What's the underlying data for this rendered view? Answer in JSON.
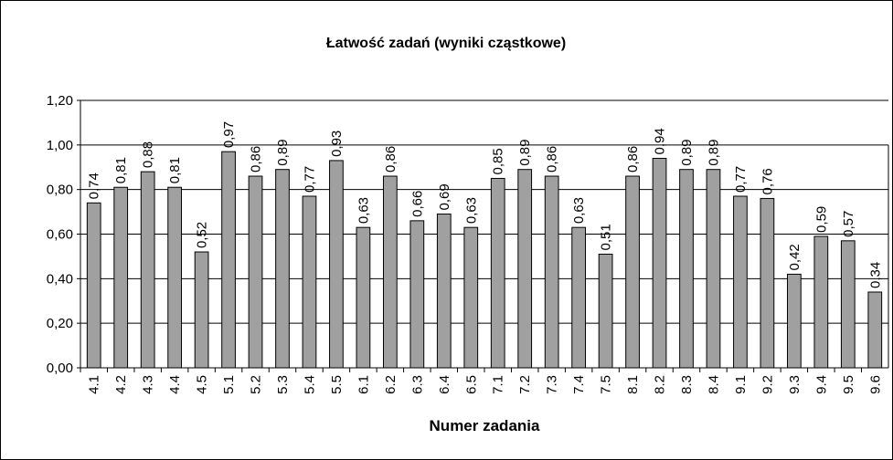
{
  "chart_data": {
    "type": "bar",
    "title": "Łatwość zadań (wyniki cząstkowe)",
    "x_label": "Numer zadania",
    "categories": [
      "4.1",
      "4.2",
      "4.3",
      "4.4",
      "4.5",
      "5.1",
      "5.2",
      "5.3",
      "5.4",
      "5.5",
      "6.1",
      "6.2",
      "6.3",
      "6.4",
      "6.5",
      "7.1",
      "7.2",
      "7.3",
      "7.4",
      "7.5",
      "8.1",
      "8.2",
      "8.3",
      "8.4",
      "9.1",
      "9.2",
      "9.3",
      "9.4",
      "9.5",
      "9.6"
    ],
    "values": [
      0.74,
      0.81,
      0.88,
      0.81,
      0.52,
      0.97,
      0.86,
      0.89,
      0.77,
      0.93,
      0.63,
      0.86,
      0.66,
      0.69,
      0.63,
      0.85,
      0.89,
      0.86,
      0.63,
      0.51,
      0.86,
      0.94,
      0.89,
      0.89,
      0.77,
      0.76,
      0.42,
      0.59,
      0.57,
      0.34
    ],
    "value_labels": [
      "0,74",
      "0,81",
      "0,88",
      "0,81",
      "0,52",
      "0,97",
      "0,86",
      "0,89",
      "0,77",
      "0,93",
      "0,63",
      "0,86",
      "0,66",
      "0,69",
      "0,63",
      "0,85",
      "0,89",
      "0,86",
      "0,63",
      "0,51",
      "0,86",
      "0,94",
      "0,89",
      "0,89",
      "0,77",
      "0,76",
      "0,42",
      "0,59",
      "0,57",
      "0,34"
    ],
    "color": "#a0a0a0",
    "ylim": [
      0,
      1.2
    ],
    "yticks": [
      {
        "value": 0,
        "label": "0,00"
      },
      {
        "value": 0.2,
        "label": "0,20"
      },
      {
        "value": 0.4,
        "label": "0,40"
      },
      {
        "value": 0.6,
        "label": "0,60"
      },
      {
        "value": 0.8,
        "label": "0,80"
      },
      {
        "value": 1,
        "label": "1,00"
      },
      {
        "value": 1.2,
        "label": "1,20"
      }
    ],
    "grid": true
  }
}
